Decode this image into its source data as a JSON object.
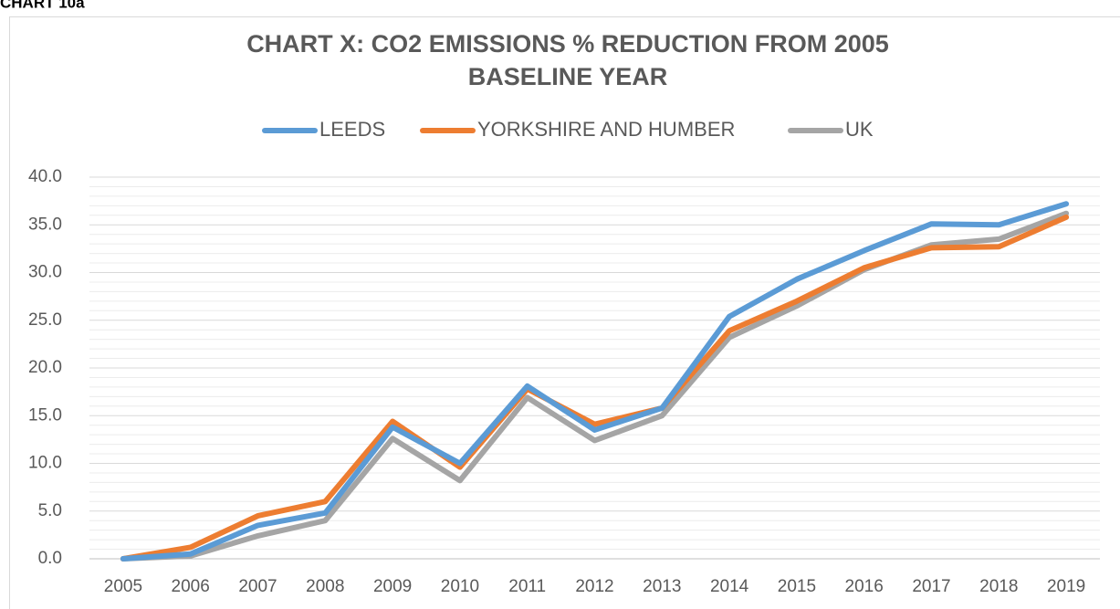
{
  "caption": "CHART 10a",
  "chart_data": {
    "type": "line",
    "title": [
      "CHART X: CO2 EMISSIONS % REDUCTION FROM 2005",
      "BASELINE YEAR"
    ],
    "categories": [
      "2005",
      "2006",
      "2007",
      "2008",
      "2009",
      "2010",
      "2011",
      "2012",
      "2013",
      "2014",
      "2015",
      "2016",
      "2017",
      "2018",
      "2019"
    ],
    "series": [
      {
        "name": "LEEDS",
        "color": "#5b9bd5",
        "values": [
          0,
          0.5,
          3.5,
          4.8,
          13.8,
          10.0,
          18.1,
          13.5,
          15.8,
          25.4,
          29.3,
          32.3,
          35.1,
          35.0,
          37.2
        ]
      },
      {
        "name": "YORKSHIRE AND HUMBER",
        "color": "#ed7d31",
        "values": [
          0,
          1.2,
          4.5,
          6.0,
          14.4,
          9.6,
          17.8,
          14.1,
          15.8,
          23.9,
          27.0,
          30.5,
          32.6,
          32.7,
          35.8
        ]
      },
      {
        "name": "UK",
        "color": "#a5a5a5",
        "values": [
          0,
          0.3,
          2.4,
          4.0,
          12.6,
          8.2,
          16.9,
          12.4,
          15.0,
          23.2,
          26.5,
          30.3,
          32.9,
          33.5,
          36.2
        ]
      }
    ],
    "ylim": [
      0,
      40
    ],
    "yticks": [
      {
        "value": 0,
        "label": "0.0"
      },
      {
        "value": 5,
        "label": "5.0"
      },
      {
        "value": 10,
        "label": "10.0"
      },
      {
        "value": 15,
        "label": "15.0"
      },
      {
        "value": 20,
        "label": "20.0"
      },
      {
        "value": 25,
        "label": "25.0"
      },
      {
        "value": 30,
        "label": "30.0"
      },
      {
        "value": 35,
        "label": "35.0"
      },
      {
        "value": 40,
        "label": "40.0"
      }
    ],
    "grid": true,
    "minor_grid": true,
    "legend": "top"
  }
}
